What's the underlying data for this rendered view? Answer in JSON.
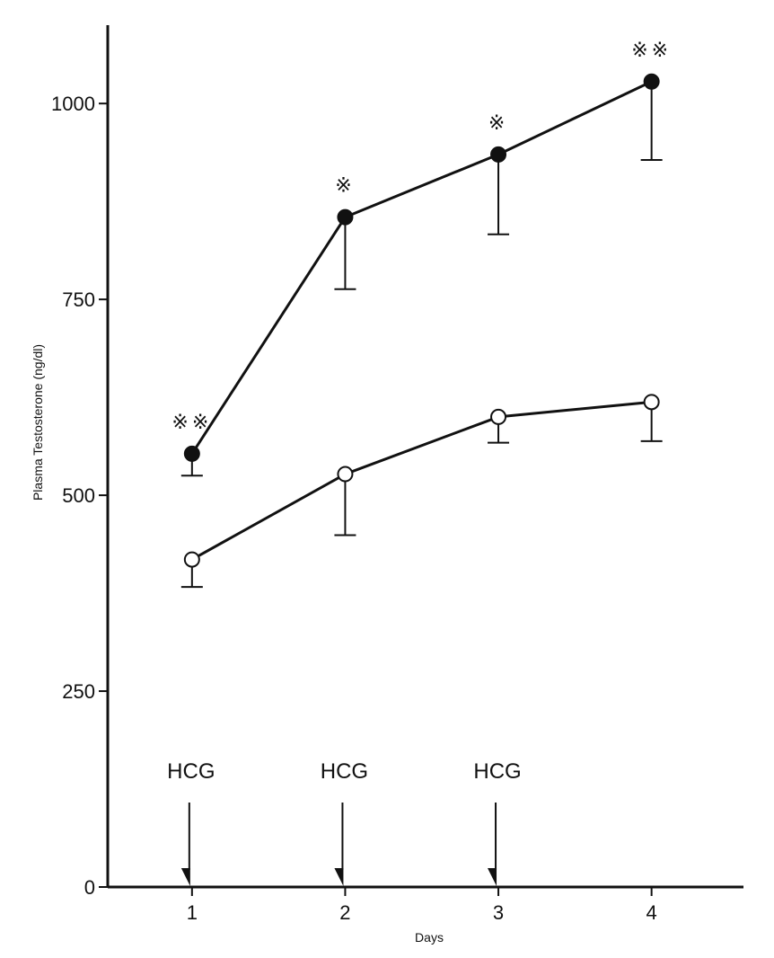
{
  "chart_data": {
    "type": "line",
    "title": "",
    "xlabel": "Days",
    "ylabel": "Plasma Testosterone (ng/dl)",
    "x": [
      1,
      2,
      3,
      4
    ],
    "x_tick_labels": [
      "1",
      "2",
      "3",
      "4"
    ],
    "xlim": [
      0.45,
      4.6
    ],
    "ylim": [
      0,
      1100
    ],
    "y_ticks": [
      0,
      250,
      500,
      750,
      1000
    ],
    "y_tick_labels": [
      "0",
      "250",
      "500",
      "750",
      "1000"
    ],
    "grid": false,
    "series": [
      {
        "name": "filled circles",
        "marker": "filled-circle",
        "values": [
          553,
          855,
          935,
          1028
        ],
        "error_lower": [
          525,
          763,
          833,
          928
        ],
        "significance": [
          "※※",
          "※",
          "※",
          "※※"
        ]
      },
      {
        "name": "open circles",
        "marker": "open-circle",
        "values": [
          418,
          527,
          600,
          619
        ],
        "error_lower": [
          383,
          449,
          567,
          569
        ],
        "significance": [
          "",
          "",
          "",
          ""
        ]
      }
    ],
    "annotations": [
      {
        "text": "HCG",
        "x": 1,
        "type": "arrow-down"
      },
      {
        "text": "HCG",
        "x": 2,
        "type": "arrow-down"
      },
      {
        "text": "HCG",
        "x": 3,
        "type": "arrow-down"
      }
    ],
    "colors": {
      "ink": "#111111",
      "background": "#ffffff"
    }
  }
}
